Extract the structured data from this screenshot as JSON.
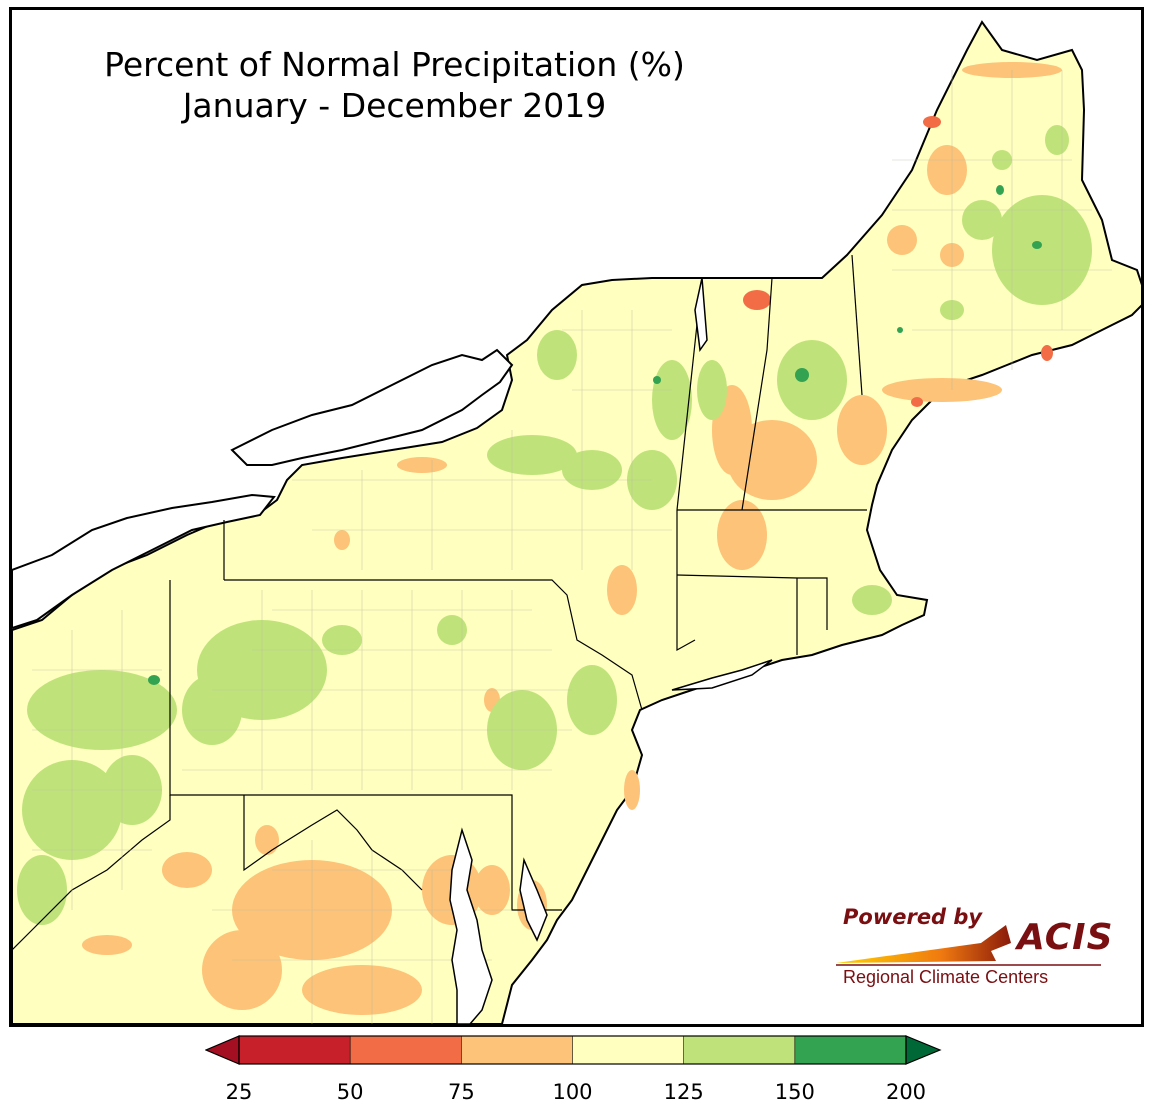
{
  "map": {
    "title_line1": "Percent of Normal Precipitation (%)",
    "title_line2": "January - December 2019",
    "background": "#ffffff",
    "water_color": "#ffffff",
    "border_color": "#000000"
  },
  "logo": {
    "powered_by": "Powered by",
    "acis": "ACIS",
    "subtitle": "Regional Climate Centers",
    "color": "#7a0f12"
  },
  "legend": {
    "tick_labels": [
      "25",
      "50",
      "75",
      "100",
      "125",
      "150",
      "200"
    ],
    "bins": [
      {
        "from": 25,
        "to": 50,
        "color": "#c8202a"
      },
      {
        "from": 50,
        "to": 75,
        "color": "#f26d45"
      },
      {
        "from": 75,
        "to": 100,
        "color": "#fdc378"
      },
      {
        "from": 100,
        "to": 125,
        "color": "#ffffbf"
      },
      {
        "from": 125,
        "to": 150,
        "color": "#bfe37a"
      },
      {
        "from": 150,
        "to": 200,
        "color": "#33a352"
      }
    ],
    "extend_low_color": "#a50f22",
    "extend_high_color": "#006837"
  }
}
